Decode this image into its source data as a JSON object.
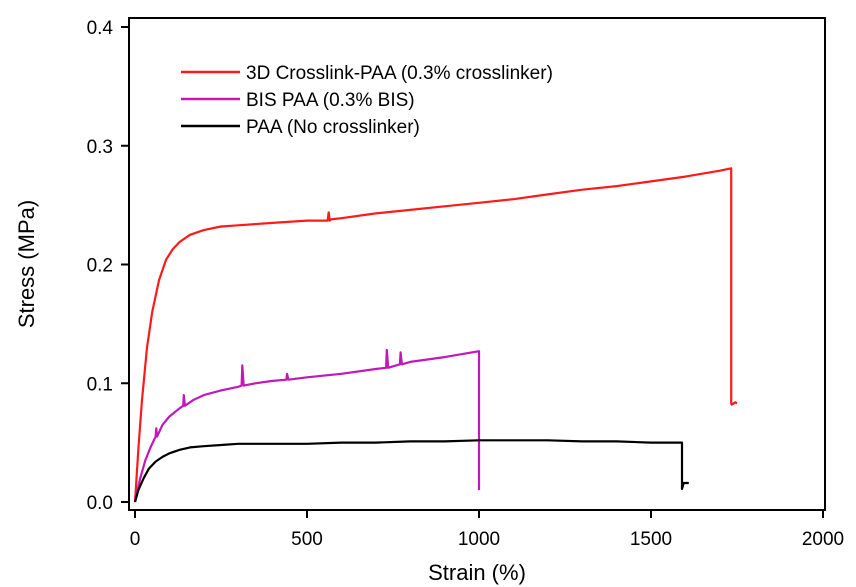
{
  "chart_data": {
    "type": "line",
    "title": "",
    "xlabel": "Strain (%)",
    "ylabel": "Stress (MPa)",
    "xlim": [
      0,
      2000
    ],
    "ylim": [
      0,
      0.4
    ],
    "xticks": [
      0,
      500,
      1000,
      1500,
      2000
    ],
    "yticks": [
      0.0,
      0.1,
      0.2,
      0.3,
      0.4
    ],
    "xtick_labels": [
      "0",
      "500",
      "1000",
      "1500",
      "2000"
    ],
    "ytick_labels": [
      "0.0",
      "0.1",
      "0.2",
      "0.3",
      "0.4"
    ],
    "grid": false,
    "legend_position": "top-left",
    "series": [
      {
        "name": "3D Crosslink-PAA (0.3% crosslinker)",
        "color": "#ff1a1a",
        "x": [
          0,
          10,
          20,
          35,
          50,
          70,
          90,
          110,
          130,
          160,
          200,
          250,
          300,
          400,
          500,
          560,
          563,
          566,
          570,
          600,
          700,
          800,
          900,
          1000,
          1100,
          1200,
          1300,
          1400,
          1500,
          1600,
          1700,
          1733,
          1733,
          1735,
          1745,
          1750
        ],
        "y": [
          0.0,
          0.045,
          0.085,
          0.13,
          0.16,
          0.187,
          0.204,
          0.213,
          0.219,
          0.225,
          0.229,
          0.232,
          0.233,
          0.235,
          0.237,
          0.237,
          0.244,
          0.237,
          0.238,
          0.239,
          0.243,
          0.246,
          0.249,
          0.252,
          0.255,
          0.259,
          0.263,
          0.266,
          0.27,
          0.274,
          0.279,
          0.281,
          0.083,
          0.082,
          0.084,
          0.083
        ]
      },
      {
        "name": "BIS PAA (0.3% BIS)",
        "color": "#c218b8",
        "x": [
          0,
          15,
          30,
          45,
          60,
          62,
          64,
          80,
          100,
          130,
          140,
          142,
          145,
          170,
          200,
          250,
          300,
          310,
          312,
          316,
          350,
          400,
          440,
          442,
          446,
          500,
          600,
          700,
          730,
          732,
          736,
          770,
          772,
          776,
          800,
          900,
          1000,
          1000
        ],
        "y": [
          0.0,
          0.02,
          0.035,
          0.046,
          0.055,
          0.062,
          0.055,
          0.065,
          0.072,
          0.079,
          0.081,
          0.09,
          0.081,
          0.086,
          0.09,
          0.094,
          0.097,
          0.098,
          0.115,
          0.098,
          0.1,
          0.102,
          0.103,
          0.108,
          0.103,
          0.105,
          0.108,
          0.112,
          0.113,
          0.128,
          0.113,
          0.116,
          0.126,
          0.116,
          0.118,
          0.122,
          0.127,
          0.01
        ]
      },
      {
        "name": "PAA (No crosslinker)",
        "color": "#000000",
        "x": [
          0,
          10,
          25,
          40,
          60,
          80,
          100,
          130,
          160,
          200,
          250,
          300,
          400,
          500,
          600,
          700,
          800,
          900,
          1000,
          1100,
          1200,
          1300,
          1400,
          1500,
          1560,
          1590,
          1590,
          1595,
          1600,
          1610
        ],
        "y": [
          0.0,
          0.01,
          0.02,
          0.028,
          0.034,
          0.038,
          0.041,
          0.044,
          0.046,
          0.047,
          0.048,
          0.049,
          0.049,
          0.049,
          0.05,
          0.05,
          0.051,
          0.051,
          0.052,
          0.052,
          0.052,
          0.051,
          0.051,
          0.05,
          0.05,
          0.05,
          0.011,
          0.016,
          0.016,
          0.016
        ]
      }
    ]
  }
}
